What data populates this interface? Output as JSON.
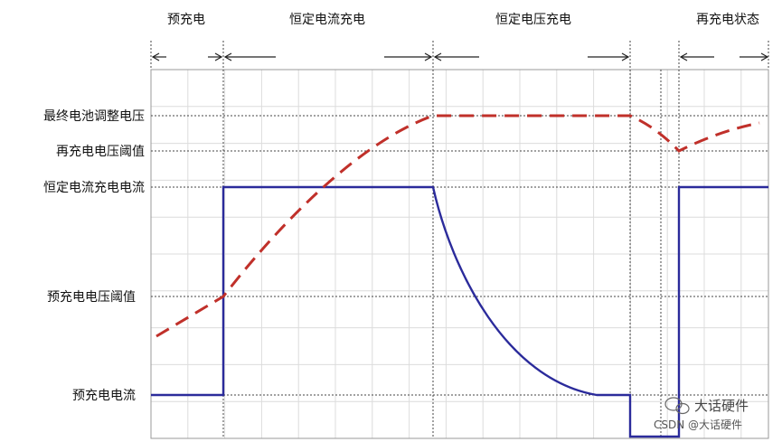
{
  "phases": {
    "precharge": "预充电",
    "constant_current": "恒定电流充电",
    "constant_voltage": "恒定电压充电",
    "recharge_state": "再充电状态"
  },
  "levels": {
    "final_regulation_voltage": "最终电池调整电压",
    "recharge_voltage_threshold": "再充电电压阈值",
    "constant_current_charge_current": "恒定电流充电电流",
    "precharge_voltage_threshold": "预充电电压阈值",
    "precharge_current": "预充电电流"
  },
  "watermark": {
    "brand": "大话硬件",
    "credit": "CSDN @大话硬件"
  },
  "colors": {
    "current_line": "#2b2b9b",
    "voltage_line": "#c0302a",
    "grid": "#dcdcdc",
    "divider": "#555555"
  }
}
